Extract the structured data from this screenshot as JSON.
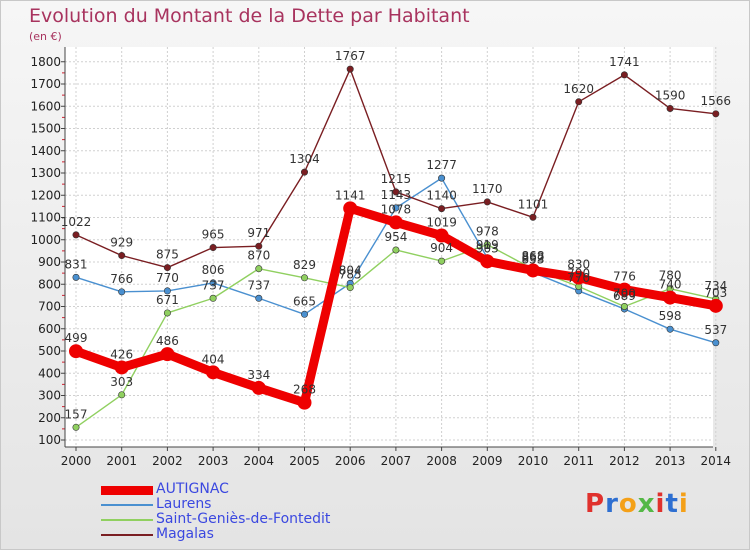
{
  "title": "Evolution du Montant de la Dette par Habitant",
  "unit": "(en €)",
  "logo": {
    "text": "Proxiti",
    "colors": [
      "#e0312d",
      "#2e6fd1",
      "#f4a018",
      "#54b846",
      "#e0312d",
      "#2e6fd1",
      "#f4a018"
    ]
  },
  "chart_data": {
    "type": "line",
    "categories": [
      "2000",
      "2001",
      "2002",
      "2003",
      "2004",
      "2005",
      "2006",
      "2007",
      "2008",
      "2009",
      "2010",
      "2011",
      "2012",
      "2013",
      "2014"
    ],
    "y_ticks": [
      100,
      200,
      300,
      400,
      500,
      600,
      700,
      800,
      900,
      1000,
      1100,
      1200,
      1300,
      1400,
      1500,
      1600,
      1700,
      1800
    ],
    "ylim": [
      100,
      1850
    ],
    "grid": true,
    "legend_position": "bottom-left",
    "series": [
      {
        "name": "AUTIGNAC",
        "color": "#ee0000",
        "emphasis": true,
        "values": [
          499,
          426,
          486,
          404,
          334,
          268,
          1141,
          1078,
          1019,
          903,
          862,
          830,
          776,
          740,
          703
        ],
        "labels": [
          "499",
          "426",
          "486",
          "404",
          "334",
          "268",
          "1141",
          "1078",
          "1019",
          "903",
          "862",
          "830",
          "776",
          "740",
          "703"
        ]
      },
      {
        "name": "Laurens",
        "color": "#4a90d0",
        "values": [
          831,
          766,
          770,
          806,
          737,
          665,
          804,
          1143,
          1277,
          919,
          853,
          770,
          689,
          598,
          537
        ],
        "labels": [
          "831",
          "766",
          "770",
          "806",
          "737",
          "665",
          "804",
          "1143",
          "1277",
          "919",
          "853",
          "770",
          "689",
          "598",
          "537"
        ]
      },
      {
        "name": "Saint-Geniès-de-Fontedit",
        "color": "#90d060",
        "values": [
          157,
          303,
          671,
          737,
          870,
          829,
          785,
          954,
          904,
          978,
          868,
          790,
          700,
          780,
          734
        ],
        "labels": [
          "157",
          "303",
          "671",
          "737",
          "870",
          "829",
          "785",
          "954",
          "904",
          "978",
          "868",
          "790",
          "700",
          "780",
          "734"
        ]
      },
      {
        "name": "Magalas",
        "color": "#7a1e22",
        "values": [
          1022,
          929,
          875,
          965,
          971,
          1304,
          1767,
          1215,
          1140,
          1170,
          1101,
          1620,
          1741,
          1590,
          1566
        ],
        "labels": [
          "1022",
          "929",
          "875",
          "965",
          "971",
          "1304",
          "1767",
          "1215",
          "1140",
          "1170",
          "1101",
          "1620",
          "1741",
          "1590",
          "1566"
        ]
      }
    ]
  }
}
